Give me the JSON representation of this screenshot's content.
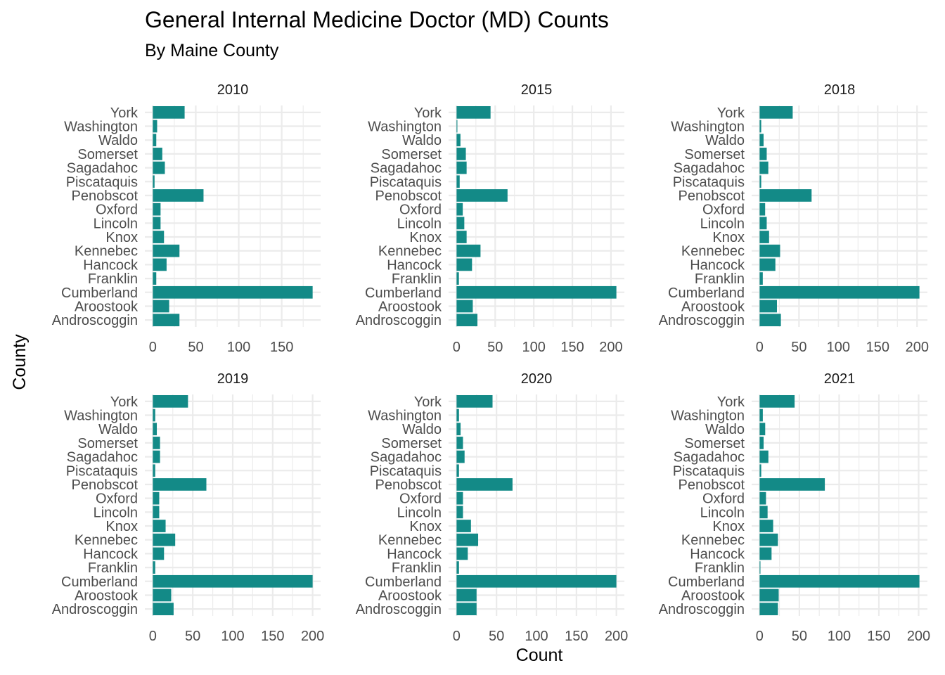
{
  "chart_data": {
    "type": "bar",
    "orientation": "horizontal",
    "title": "General Internal Medicine Doctor (MD) Counts",
    "subtitle": "By Maine County",
    "xlabel": "Count",
    "ylabel": "County",
    "grid": true,
    "bar_color": "#138a87",
    "categories": [
      "Androscoggin",
      "Aroostook",
      "Cumberland",
      "Franklin",
      "Hancock",
      "Kennebec",
      "Knox",
      "Lincoln",
      "Oxford",
      "Penobscot",
      "Piscataquis",
      "Sagadahoc",
      "Somerset",
      "Waldo",
      "Washington",
      "York"
    ],
    "panels": [
      {
        "facet": "2010",
        "xlim": [
          0,
          186
        ],
        "xticks": [
          0,
          50,
          100,
          150
        ],
        "values": [
          31,
          19,
          186,
          4,
          16,
          31,
          13,
          9,
          9,
          59,
          2,
          14,
          11,
          4,
          5,
          37
        ]
      },
      {
        "facet": "2015",
        "xlim": [
          0,
          207
        ],
        "xticks": [
          0,
          50,
          100,
          150,
          200
        ],
        "values": [
          27,
          21,
          207,
          3,
          20,
          31,
          13,
          10,
          8,
          66,
          4,
          13,
          12,
          5,
          1,
          44
        ]
      },
      {
        "facet": "2018",
        "xlim": [
          0,
          203
        ],
        "xticks": [
          0,
          50,
          100,
          150,
          200
        ],
        "values": [
          27,
          22,
          203,
          4,
          20,
          26,
          12,
          9,
          7,
          66,
          2,
          11,
          9,
          5,
          2,
          42
        ]
      },
      {
        "facet": "2019",
        "xlim": [
          0,
          200
        ],
        "xticks": [
          0,
          50,
          100,
          150,
          200
        ],
        "values": [
          26,
          23,
          200,
          3,
          14,
          28,
          16,
          8,
          8,
          67,
          3,
          9,
          9,
          5,
          3,
          44
        ]
      },
      {
        "facet": "2020",
        "xlim": [
          0,
          200
        ],
        "xticks": [
          0,
          50,
          100,
          150,
          200
        ],
        "values": [
          25,
          25,
          200,
          3,
          14,
          27,
          18,
          8,
          8,
          70,
          3,
          10,
          8,
          5,
          3,
          45
        ]
      },
      {
        "facet": "2021",
        "xlim": [
          0,
          201
        ],
        "xticks": [
          0,
          50,
          100,
          150,
          200
        ],
        "values": [
          23,
          24,
          201,
          1,
          15,
          23,
          17,
          10,
          8,
          82,
          2,
          11,
          5,
          7,
          4,
          44
        ]
      }
    ]
  }
}
